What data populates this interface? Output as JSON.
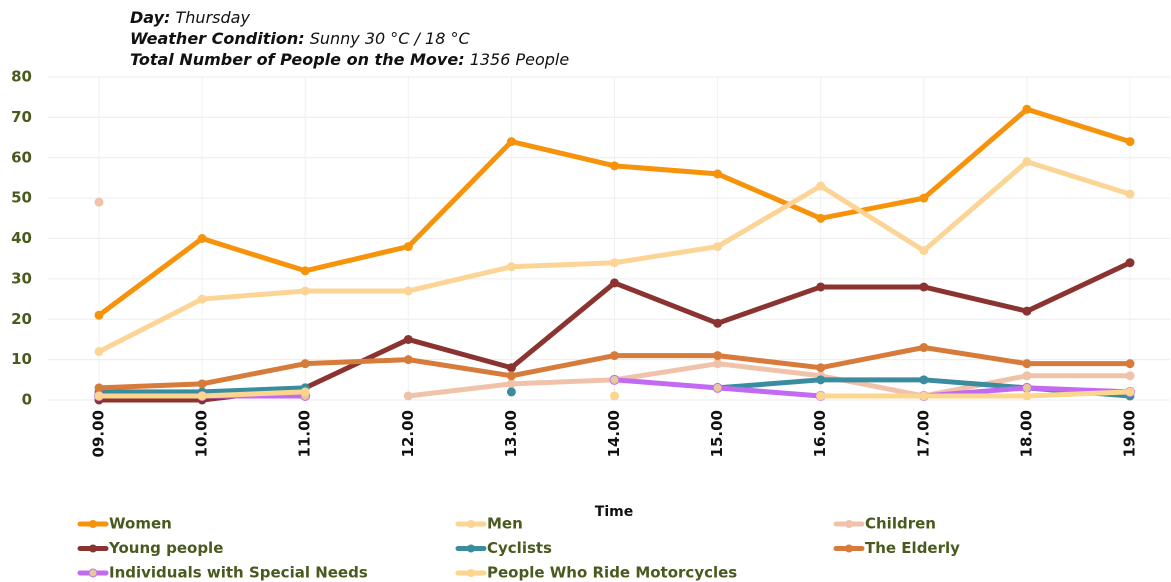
{
  "chart_data": {
    "type": "line",
    "info": [
      {
        "label": "Day:",
        "value": "Thursday"
      },
      {
        "label": "Weather Condition:",
        "value": "Sunny 30 °C / 18  °C"
      },
      {
        "label": "Total Number of People on the Move:",
        "value": "1356 People"
      }
    ],
    "x_label": "Time",
    "categories": [
      "09.00",
      "10.00",
      "11.00",
      "12.00",
      "13.00",
      "14.00",
      "15.00",
      "16.00",
      "17.00",
      "18.00",
      "19.00"
    ],
    "ylim": [
      0,
      80
    ],
    "yticks": [
      0,
      10,
      20,
      30,
      40,
      50,
      60,
      70,
      80
    ],
    "grid": true,
    "series": [
      {
        "name": "Women",
        "color": "#f7930a",
        "values": [
          21,
          40,
          32,
          38,
          64,
          58,
          56,
          45,
          50,
          72,
          64
        ]
      },
      {
        "name": "Men",
        "color": "#fcd596",
        "values": [
          12,
          25,
          27,
          27,
          33,
          34,
          38,
          53,
          37,
          59,
          51
        ]
      },
      {
        "name": "Children",
        "color": "#f0c2aa",
        "values": [
          49,
          null,
          null,
          1,
          4,
          5,
          9,
          6,
          1,
          6,
          6
        ]
      },
      {
        "name": "Young people",
        "color": "#8b3331",
        "values": [
          0,
          0,
          3,
          15,
          8,
          29,
          19,
          28,
          28,
          22,
          34
        ]
      },
      {
        "name": "Cyclists",
        "color": "#3a8d9f",
        "values": [
          2,
          2,
          3,
          null,
          2,
          null,
          3,
          5,
          5,
          3,
          1
        ]
      },
      {
        "name": "The Elderly",
        "color": "#d77b3b",
        "values": [
          3,
          4,
          9,
          10,
          6,
          11,
          11,
          8,
          13,
          9,
          9
        ]
      },
      {
        "name": "Individuals with Special Needs",
        "color": "#c26af2",
        "marker_color": "#e6c99b",
        "values": [
          1,
          1,
          1,
          null,
          null,
          5,
          3,
          1,
          1,
          3,
          2
        ]
      },
      {
        "name": "People Who Ride Motorcycles",
        "color": "#fcd58e",
        "values": [
          1,
          1,
          2,
          null,
          null,
          1,
          null,
          1,
          1,
          1,
          2
        ]
      }
    ]
  }
}
